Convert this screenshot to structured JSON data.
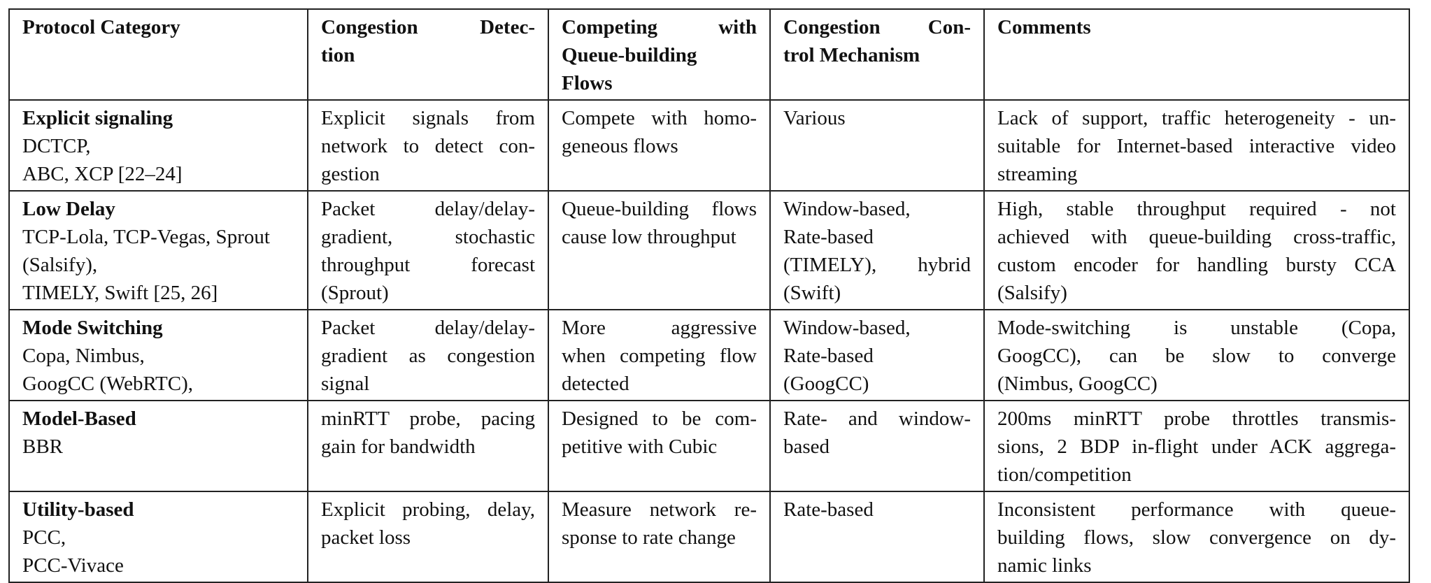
{
  "table": {
    "headers": [
      [
        "Protocol Category"
      ],
      [
        "Congestion Detec-",
        "tion"
      ],
      [
        "Competing with",
        "Queue-building",
        "Flows"
      ],
      [
        "Congestion Con-",
        "trol Mechanism"
      ],
      [
        "Comments"
      ]
    ],
    "rows": [
      {
        "category": "Explicit signaling",
        "protocols": [
          "DCTCP,",
          "ABC, XCP [22–24]"
        ],
        "detection": [
          "Explicit signals from",
          "network to detect con-",
          "gestion"
        ],
        "competing": [
          "Compete with homo-",
          "geneous flows"
        ],
        "mechanism": [
          "Various"
        ],
        "comments": [
          "Lack of support, traffic heterogeneity - un-",
          "suitable for Internet-based interactive video",
          "streaming"
        ]
      },
      {
        "category": "Low Delay",
        "protocols": [
          "TCP-Lola, TCP-Vegas, Sprout",
          "(Salsify),",
          "TIMELY, Swift [25, 26]"
        ],
        "detection": [
          "Packet delay/delay-",
          "gradient, stochastic",
          "throughput forecast",
          "(Sprout)"
        ],
        "competing": [
          "Queue-building flows",
          "cause low throughput"
        ],
        "mechanism": [
          "Window-based,",
          "Rate-based",
          "(TIMELY), hybrid",
          "(Swift)"
        ],
        "comments": [
          "High, stable throughput required - not",
          "achieved with queue-building cross-traffic,",
          "custom encoder for handling bursty CCA",
          "(Salsify)"
        ]
      },
      {
        "category": "Mode Switching",
        "protocols": [
          "Copa, Nimbus,",
          "GoogCC (WebRTC),"
        ],
        "detection": [
          "Packet delay/delay-",
          "gradient as congestion",
          "signal"
        ],
        "competing": [
          "More aggressive",
          "when competing flow",
          "detected"
        ],
        "mechanism": [
          "Window-based,",
          "Rate-based",
          "(GoogCC)"
        ],
        "comments": [
          "Mode-switching is unstable (Copa,",
          "GoogCC), can be slow to converge",
          "(Nimbus, GoogCC)"
        ]
      },
      {
        "category": "Model-Based",
        "protocols": [
          "BBR"
        ],
        "detection": [
          "minRTT probe, pacing",
          "gain for bandwidth"
        ],
        "competing": [
          "Designed to be com-",
          "petitive with Cubic"
        ],
        "mechanism": [
          "Rate- and window-",
          "based"
        ],
        "comments": [
          "200ms minRTT probe throttles transmis-",
          "sions, 2 BDP in-flight under ACK aggrega-",
          "tion/competition"
        ]
      },
      {
        "category": "Utility-based",
        "protocols": [
          "PCC,",
          "PCC-Vivace"
        ],
        "detection": [
          "Explicit probing, delay,",
          "packet loss"
        ],
        "competing": [
          "Measure network re-",
          "sponse to rate change"
        ],
        "mechanism": [
          "Rate-based"
        ],
        "comments": [
          "Inconsistent performance with queue-",
          "building flows, slow convergence on dy-",
          "namic links"
        ]
      }
    ]
  }
}
